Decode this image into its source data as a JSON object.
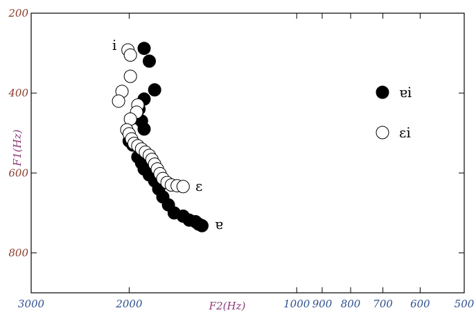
{
  "chart_data": {
    "type": "scatter",
    "title": "",
    "xlabel": "F2(Hz)",
    "ylabel": "F1(Hz)",
    "x_scale": "log",
    "x_reversed": true,
    "y_reversed": true,
    "xlim": [
      3000,
      500
    ],
    "ylim": [
      200,
      900
    ],
    "x_ticks": [
      3000,
      2000,
      1000,
      900,
      800,
      700,
      600,
      500
    ],
    "x_tick_labels": [
      "3000",
      "2000",
      "1000",
      "900",
      "800",
      "700",
      "600",
      "500"
    ],
    "y_ticks": [
      200,
      400,
      600,
      800
    ],
    "y_tick_labels": [
      "200",
      "400",
      "600",
      "800"
    ],
    "grid": false,
    "legend_position": "right",
    "colors": {
      "frame": "#000000",
      "filled": "#000000",
      "open_fill": "#ffffff"
    },
    "series": [
      {
        "name": "ɐi",
        "marker": "filled-circle",
        "points": [
          [
            1880,
            288
          ],
          [
            1840,
            320
          ],
          [
            1800,
            392
          ],
          [
            1880,
            415
          ],
          [
            1920,
            440
          ],
          [
            1960,
            462
          ],
          [
            1900,
            470
          ],
          [
            1880,
            490
          ],
          [
            2000,
            520
          ],
          [
            1970,
            530
          ],
          [
            1930,
            560
          ],
          [
            1900,
            575
          ],
          [
            1880,
            590
          ],
          [
            1840,
            605
          ],
          [
            1800,
            620
          ],
          [
            1770,
            640
          ],
          [
            1740,
            660
          ],
          [
            1700,
            680
          ],
          [
            1660,
            700
          ],
          [
            1600,
            708
          ],
          [
            1560,
            718
          ],
          [
            1520,
            722
          ],
          [
            1500,
            728
          ],
          [
            1480,
            732
          ]
        ]
      },
      {
        "name": "ɛi",
        "marker": "open-circle",
        "points": [
          [
            2010,
            292
          ],
          [
            1990,
            305
          ],
          [
            1990,
            358
          ],
          [
            2060,
            396
          ],
          [
            2090,
            420
          ],
          [
            1930,
            430
          ],
          [
            1940,
            448
          ],
          [
            1990,
            465
          ],
          [
            2020,
            492
          ],
          [
            2000,
            502
          ],
          [
            1980,
            515
          ],
          [
            1960,
            526
          ],
          [
            1930,
            532
          ],
          [
            1900,
            540
          ],
          [
            1870,
            548
          ],
          [
            1840,
            556
          ],
          [
            1820,
            566
          ],
          [
            1800,
            578
          ],
          [
            1780,
            590
          ],
          [
            1760,
            602
          ],
          [
            1740,
            614
          ],
          [
            1710,
            624
          ],
          [
            1680,
            630
          ],
          [
            1640,
            632
          ],
          [
            1600,
            634
          ]
        ]
      }
    ],
    "annotations": [
      "i",
      "ɛ",
      "ɐ"
    ]
  }
}
